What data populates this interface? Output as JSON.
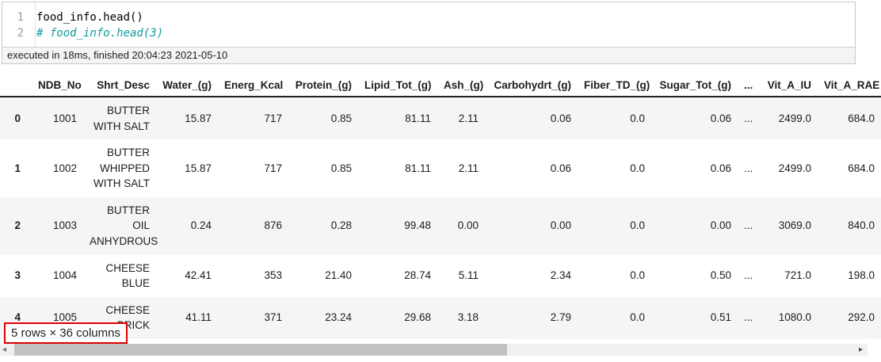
{
  "colors": {
    "comment": "#0d9a9e",
    "annotation_red": "#dd0000",
    "stripe": "#f5f5f5"
  },
  "icons": {
    "scroll_left_icon": "◂",
    "scroll_right_icon": "▸"
  },
  "code_cell": {
    "lines": [
      {
        "number": "1",
        "code": "food_info.head()",
        "kind": "code"
      },
      {
        "number": "2",
        "code": "# food_info.head(3)",
        "kind": "comment"
      }
    ],
    "status": "executed in 18ms, finished 20:04:23 2021-05-10"
  },
  "dataframe": {
    "index_header": "",
    "columns": [
      "NDB_No",
      "Shrt_Desc",
      "Water_(g)",
      "Energ_Kcal",
      "Protein_(g)",
      "Lipid_Tot_(g)",
      "Ash_(g)",
      "Carbohydrt_(g)",
      "Fiber_TD_(g)",
      "Sugar_Tot_(g)",
      "...",
      "Vit_A_IU",
      "Vit_A_RAE"
    ],
    "rows": [
      {
        "index": "0",
        "cells": [
          "1001",
          "BUTTER WITH SALT",
          "15.87",
          "717",
          "0.85",
          "81.11",
          "2.11",
          "0.06",
          "0.0",
          "0.06",
          "...",
          "2499.0",
          "684.0"
        ]
      },
      {
        "index": "1",
        "cells": [
          "1002",
          "BUTTER WHIPPED WITH SALT",
          "15.87",
          "717",
          "0.85",
          "81.11",
          "2.11",
          "0.06",
          "0.0",
          "0.06",
          "...",
          "2499.0",
          "684.0"
        ]
      },
      {
        "index": "2",
        "cells": [
          "1003",
          "BUTTER OIL ANHYDROUS",
          "0.24",
          "876",
          "0.28",
          "99.48",
          "0.00",
          "0.00",
          "0.0",
          "0.00",
          "...",
          "3069.0",
          "840.0"
        ]
      },
      {
        "index": "3",
        "cells": [
          "1004",
          "CHEESE BLUE",
          "42.41",
          "353",
          "21.40",
          "28.74",
          "5.11",
          "2.34",
          "0.0",
          "0.50",
          "...",
          "721.0",
          "198.0"
        ]
      },
      {
        "index": "4",
        "cells": [
          "1005",
          "CHEESE BRICK",
          "41.11",
          "371",
          "23.24",
          "29.68",
          "3.18",
          "2.79",
          "0.0",
          "0.51",
          "...",
          "1080.0",
          "292.0"
        ]
      }
    ],
    "summary": "5 rows × 36 columns"
  }
}
